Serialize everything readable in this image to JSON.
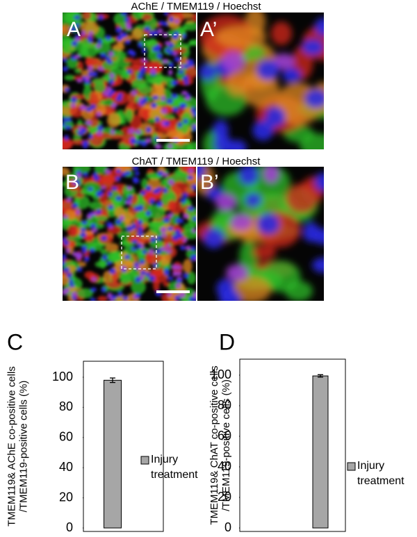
{
  "panels": [
    {
      "title": "AChE / TMEM119 / Hoechst",
      "labels": [
        "A",
        "A’"
      ]
    },
    {
      "title": "ChAT / TMEM119 / Hoechst",
      "labels": [
        "B",
        "B’"
      ]
    }
  ],
  "chart_data": [
    {
      "type": "bar",
      "panel_label": "C",
      "y_label": "TMEM119& AChE co-positive cells /TMEM119-positive cells (%)",
      "categories": [
        null
      ],
      "series": [
        {
          "name": "Injury treatment",
          "color": "#a6a6a6",
          "values": [
            98
          ],
          "errors": [
            1.5
          ]
        }
      ],
      "ylim": [
        0,
        110
      ],
      "yticks": [
        0,
        20,
        40,
        60,
        80,
        100
      ]
    },
    {
      "type": "bar",
      "panel_label": "D",
      "y_label": "TMEM119& ChAT co-positive cells /TMEM119-positive cells (%)",
      "categories": [
        null
      ],
      "series": [
        {
          "name": "Injury treatment",
          "color": "#a6a6a6",
          "values": [
            99.5
          ],
          "errors": [
            0.8
          ]
        }
      ],
      "ylim": [
        0,
        110
      ],
      "yticks": [
        0,
        20,
        40,
        60,
        80,
        100
      ]
    }
  ]
}
